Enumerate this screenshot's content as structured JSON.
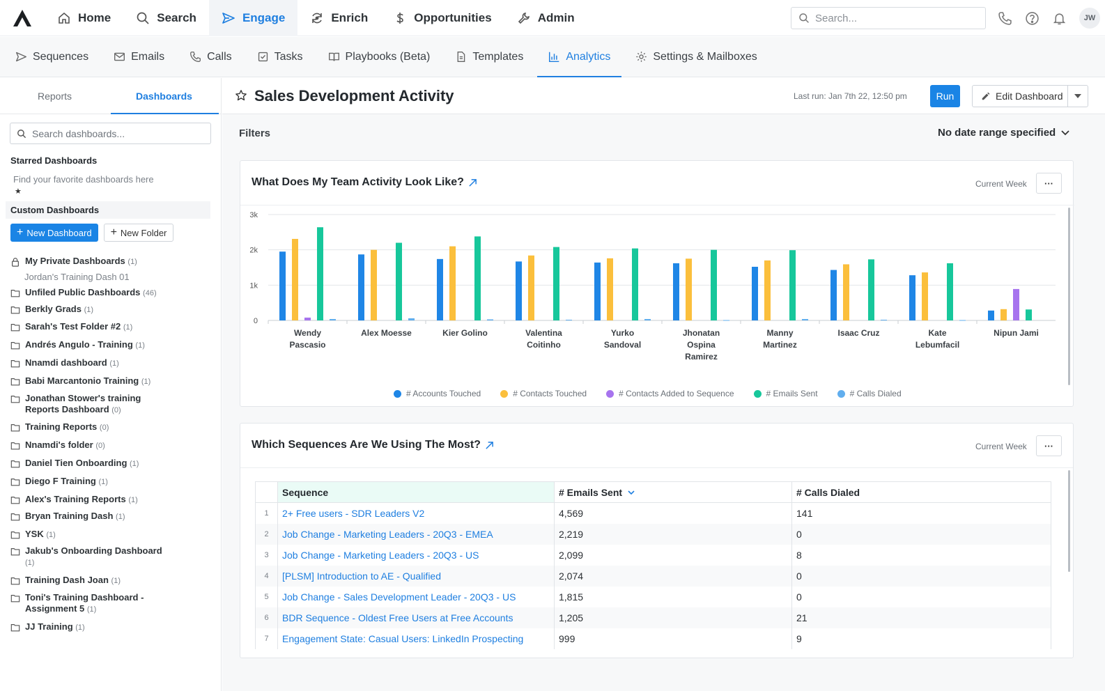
{
  "topnav": {
    "items": [
      {
        "label": "Home",
        "icon": "home-icon",
        "active": false
      },
      {
        "label": "Search",
        "icon": "search-icon",
        "active": false
      },
      {
        "label": "Engage",
        "icon": "send-icon",
        "active": true
      },
      {
        "label": "Enrich",
        "icon": "refresh-icon",
        "active": false
      },
      {
        "label": "Opportunities",
        "icon": "dollar-icon",
        "active": false
      },
      {
        "label": "Admin",
        "icon": "wrench-icon",
        "active": false
      }
    ],
    "search_placeholder": "Search...",
    "avatar_initials": "JW"
  },
  "subnav": {
    "items": [
      {
        "label": "Sequences",
        "icon": "send-icon",
        "active": false
      },
      {
        "label": "Emails",
        "icon": "mail-icon",
        "active": false
      },
      {
        "label": "Calls",
        "icon": "phone-icon",
        "active": false
      },
      {
        "label": "Tasks",
        "icon": "checkbox-icon",
        "active": false
      },
      {
        "label": "Playbooks (Beta)",
        "icon": "book-icon",
        "active": false
      },
      {
        "label": "Templates",
        "icon": "document-icon",
        "active": false
      },
      {
        "label": "Analytics",
        "icon": "bar-chart-icon",
        "active": true
      },
      {
        "label": "Settings & Mailboxes",
        "icon": "gear-icon",
        "active": false
      }
    ]
  },
  "sidebar": {
    "tabs": [
      "Reports",
      "Dashboards"
    ],
    "search_placeholder": "Search dashboards...",
    "starred_heading": "Starred Dashboards",
    "starred_hint": "Find your favorite dashboards here",
    "starred_star": "★",
    "custom_heading": "Custom Dashboards",
    "new_dashboard": "New Dashboard",
    "new_folder": "New Folder",
    "private": {
      "name": "My Private Dashboards",
      "count": "(1)"
    },
    "private_child": "Jordan's Training Dash 01",
    "folders": [
      {
        "name": "Unfiled Public Dashboards",
        "count": "(46)"
      },
      {
        "name": "Berkly Grads",
        "count": "(1)"
      },
      {
        "name": "Sarah's Test Folder #2",
        "count": "(1)"
      },
      {
        "name": "Andrés Angulo - Training",
        "count": "(1)"
      },
      {
        "name": "Nnamdi dashboard",
        "count": "(1)"
      },
      {
        "name": "Babi Marcantonio Training",
        "count": "(1)"
      },
      {
        "name": "Jonathan Stower's training Reports Dashboard",
        "count": "(0)"
      },
      {
        "name": "Training Reports",
        "count": "(0)"
      },
      {
        "name": "Nnamdi's folder",
        "count": "(0)"
      },
      {
        "name": "Daniel Tien Onboarding",
        "count": "(1)"
      },
      {
        "name": "Diego F Training",
        "count": "(1)"
      },
      {
        "name": "Alex's Training Reports",
        "count": "(1)"
      },
      {
        "name": "Bryan Training Dash",
        "count": "(1)"
      },
      {
        "name": "YSK",
        "count": "(1)"
      },
      {
        "name": "Jakub's Onboarding Dashboard",
        "count": "(1)"
      },
      {
        "name": "Training Dash Joan",
        "count": "(1)"
      },
      {
        "name": "Toni's Training Dashboard - Assignment 5",
        "count": "(1)"
      },
      {
        "name": "JJ Training",
        "count": "(1)"
      }
    ]
  },
  "dashboard": {
    "title": "Sales Development Activity",
    "last_run": "Last run: Jan 7th 22, 12:50 pm",
    "run_label": "Run",
    "edit_label": "Edit Dashboard",
    "filters_label": "Filters",
    "date_range": "No date range specified"
  },
  "card1": {
    "title": "What Does My Team Activity Look Like?",
    "period": "Current Week",
    "more": "···"
  },
  "chart_data": {
    "type": "bar",
    "ylim": [
      0,
      3000
    ],
    "yticks": [
      "0",
      "1k",
      "2k",
      "3k"
    ],
    "grid": true,
    "legend_position": "bottom",
    "categories": [
      [
        "Wendy",
        "Pascasio"
      ],
      [
        "Alex Moesse"
      ],
      [
        "Kier Golino"
      ],
      [
        "Valentina",
        "Coitinho"
      ],
      [
        "Yurko",
        "Sandoval"
      ],
      [
        "Jhonatan",
        "Ospina",
        "Ramirez"
      ],
      [
        "Manny",
        "Martinez"
      ],
      [
        "Isaac Cruz"
      ],
      [
        "Kate",
        "Lebumfacil"
      ],
      [
        "Nipun Jami"
      ]
    ],
    "series": [
      {
        "name": "# Accounts Touched",
        "color": "#1f86e6",
        "values": [
          1950,
          1870,
          1740,
          1670,
          1640,
          1620,
          1520,
          1430,
          1280,
          280
        ]
      },
      {
        "name": "# Contacts Touched",
        "color": "#fbbf3c",
        "values": [
          2310,
          2000,
          2100,
          1840,
          1760,
          1750,
          1700,
          1590,
          1360,
          320
        ]
      },
      {
        "name": "# Contacts Added to Sequence",
        "color": "#a774ee",
        "values": [
          80,
          0,
          0,
          0,
          0,
          0,
          0,
          0,
          0,
          890
        ]
      },
      {
        "name": "# Emails Sent",
        "color": "#17c79b",
        "values": [
          2640,
          2200,
          2380,
          2080,
          2040,
          2000,
          1990,
          1730,
          1620,
          310
        ]
      },
      {
        "name": "# Calls Dialed",
        "color": "#61aeee",
        "values": [
          40,
          60,
          30,
          20,
          40,
          10,
          40,
          20,
          10,
          0
        ]
      }
    ]
  },
  "card2": {
    "title": "Which Sequences Are We Using The Most?",
    "period": "Current Week",
    "more": "···",
    "columns": [
      "Sequence",
      "# Emails Sent",
      "# Calls Dialed"
    ],
    "rows": [
      {
        "idx": "1",
        "sequence": "2+ Free users - SDR Leaders V2",
        "emails": "4,569",
        "calls": "141"
      },
      {
        "idx": "2",
        "sequence": "Job Change - Marketing Leaders - 20Q3 - EMEA",
        "emails": "2,219",
        "calls": "0"
      },
      {
        "idx": "3",
        "sequence": "Job Change - Marketing Leaders - 20Q3 - US",
        "emails": "2,099",
        "calls": "8"
      },
      {
        "idx": "4",
        "sequence": "[PLSM] Introduction to AE - Qualified",
        "emails": "2,074",
        "calls": "0"
      },
      {
        "idx": "5",
        "sequence": "Job Change - Sales Development Leader - 20Q3 - US",
        "emails": "1,815",
        "calls": "0"
      },
      {
        "idx": "6",
        "sequence": "BDR Sequence - Oldest Free Users at Free Accounts",
        "emails": "1,205",
        "calls": "21"
      },
      {
        "idx": "7",
        "sequence": "Engagement State: Casual Users: LinkedIn Prospecting",
        "emails": "999",
        "calls": "9"
      }
    ]
  }
}
